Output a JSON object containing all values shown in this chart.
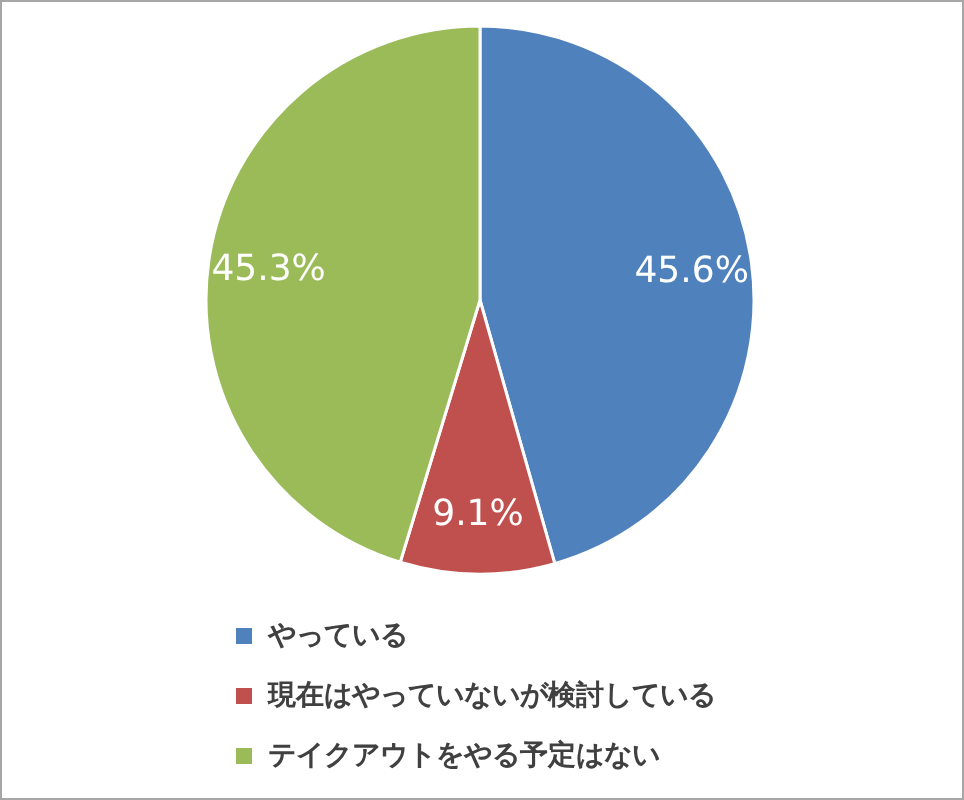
{
  "chart_data": {
    "type": "pie",
    "categories": [
      "やっている",
      "現在はやっていないが検討している",
      "テイクアウトをやる予定はない"
    ],
    "values": [
      45.6,
      9.1,
      45.3
    ],
    "colors": [
      "#4f81bd",
      "#c0504d",
      "#9bbb59"
    ],
    "value_labels": [
      "45.6%",
      "9.1%",
      "45.3%"
    ],
    "legend": "bottom"
  }
}
